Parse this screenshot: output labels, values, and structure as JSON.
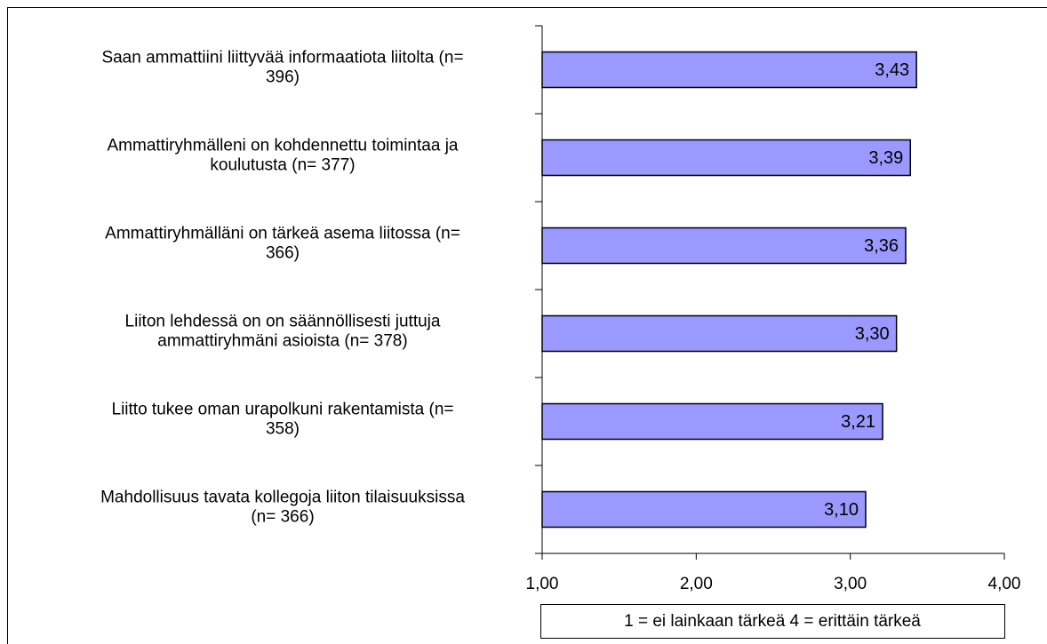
{
  "chart_data": {
    "type": "bar",
    "orientation": "horizontal",
    "categories": [
      [
        "Saan ammattiini liittyvää informaatiota liitolta (n=",
        "396)"
      ],
      [
        "Ammattiryhmälleni on kohdennettu toimintaa ja",
        "koulutusta (n= 377)"
      ],
      [
        "Ammattiryhmälläni on tärkeä asema liitossa (n=",
        "366)"
      ],
      [
        "Liiton lehdessä on on säännöllisesti juttuja",
        "ammattiryhmäni asioista (n= 378)"
      ],
      [
        "Liitto tukee oman urapolkuni rakentamista (n=",
        "358)"
      ],
      [
        "Mahdollisuus tavata kollegoja liiton tilaisuuksissa",
        "(n= 366)"
      ]
    ],
    "values": [
      3.43,
      3.39,
      3.36,
      3.3,
      3.21,
      3.1
    ],
    "value_labels": [
      "3,43",
      "3,39",
      "3,36",
      "3,30",
      "3,21",
      "3,10"
    ],
    "color": "#9999ff",
    "xlim": [
      1,
      4
    ],
    "xticks": [
      {
        "value": 1,
        "label": "1,00"
      },
      {
        "value": 2,
        "label": "2,00"
      },
      {
        "value": 3,
        "label": "3,00"
      },
      {
        "value": 4,
        "label": "4,00"
      }
    ],
    "x_label": "1 = ei lainkaan tärkeä  4 = erittäin tärkeä"
  }
}
